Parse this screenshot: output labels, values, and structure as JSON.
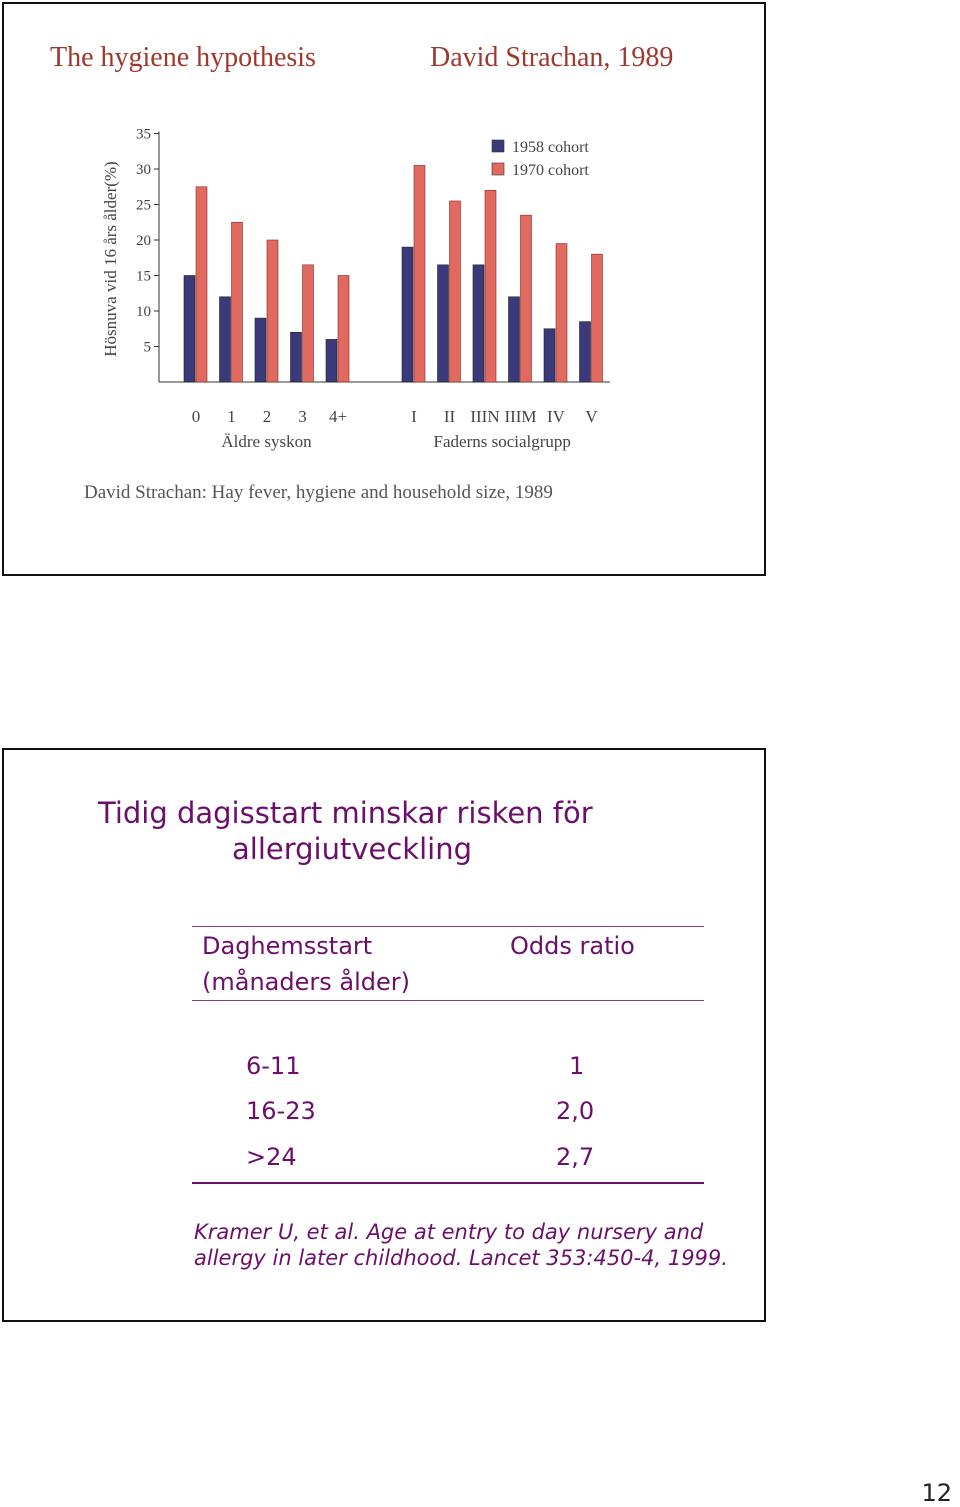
{
  "slide1": {
    "title": "The hygiene hypothesis",
    "author_year": "David Strachan, 1989",
    "caption": "David Strachan: Hay fever, hygiene and household size, 1989"
  },
  "chart_data": {
    "type": "bar",
    "ylabel": "Hösnuva vid 16 års ålder(%)",
    "yticks": [
      5,
      10,
      15,
      20,
      25,
      30,
      35
    ],
    "ylim": [
      0,
      35
    ],
    "legend_position": "top-right",
    "series_colors": [
      "#3a3a7a",
      "#e06a60"
    ],
    "series": [
      {
        "name": "1958 cohort",
        "values": [
          15,
          12,
          9,
          7,
          6,
          19,
          16.5,
          16.5,
          12,
          7.5,
          8.5
        ]
      },
      {
        "name": "1970 cohort",
        "values": [
          27.5,
          22.5,
          20,
          16.5,
          15,
          30.5,
          25.5,
          27,
          23.5,
          19.5,
          18
        ]
      }
    ],
    "groups": [
      {
        "label": "Äldre syskon",
        "categories": [
          "0",
          "1",
          "2",
          "3",
          "4+"
        ]
      },
      {
        "label": "Faderns socialgrupp",
        "categories": [
          "I",
          "II",
          "IIIN",
          "IIIM",
          "IV",
          "V"
        ]
      }
    ]
  },
  "slide2": {
    "title_line1": "Tidig dagisstart minskar risken för",
    "title_line2": "allergiutveckling",
    "col1_header_line1": "Daghemsstart",
    "col1_header_line2": "(månaders ålder)",
    "col2_header": "Odds ratio",
    "rows": [
      {
        "start": "6-11",
        "or": "1"
      },
      {
        "start": "16-23",
        "or": "2,0"
      },
      {
        "start": ">24",
        "or": "2,7"
      }
    ],
    "reference_line1": "Kramer U, et al. Age at entry to day nursery and",
    "reference_line2": "allergy in later childhood. Lancet 353:450-4, 1999."
  },
  "page_number": "12"
}
